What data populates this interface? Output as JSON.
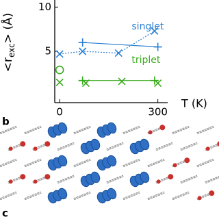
{
  "chart_data": {
    "type": "scatter",
    "ylabel": {
      "main": "<r",
      "sub": "exc",
      "tail": "> (Å)"
    },
    "xlabel": "T (K)",
    "xlim": [
      -15,
      330
    ],
    "xticks": [
      0,
      300
    ],
    "ylim": [
      -0.8,
      10.8
    ],
    "yticks": [
      5,
      10
    ],
    "annotations": [
      {
        "text": "singlet",
        "color": "#2a7fd4",
        "x": 220,
        "y": 7.8
      },
      {
        "text": "triplet",
        "color": "#3aaa1e",
        "x": 220,
        "y": 4.0
      }
    ],
    "series": [
      {
        "marker": "x",
        "color": "#2a7fd4",
        "line": "dotted",
        "x": [
          0,
          70,
          180,
          290
        ],
        "values": [
          4.7,
          5.0,
          4.8,
          7.3
        ]
      },
      {
        "marker": "plus",
        "color": "#2a7fd4",
        "line": "solid",
        "x": [
          70,
          300
        ],
        "values": [
          6.0,
          5.5
        ]
      },
      {
        "marker": "circle",
        "color": "#3aaa1e",
        "line": "none",
        "x": [
          0
        ],
        "values": [
          2.9
        ]
      },
      {
        "marker": "x",
        "color": "#3aaa1e",
        "line": "none",
        "x": [
          0,
          80,
          190,
          300
        ],
        "values": [
          1.5,
          1.4,
          1.6,
          1.4
        ]
      },
      {
        "marker": "plus",
        "color": "#3aaa1e",
        "line": "solid",
        "x": [
          70,
          290
        ],
        "values": [
          1.7,
          1.7
        ]
      }
    ]
  },
  "panels": [
    "b",
    "c"
  ]
}
